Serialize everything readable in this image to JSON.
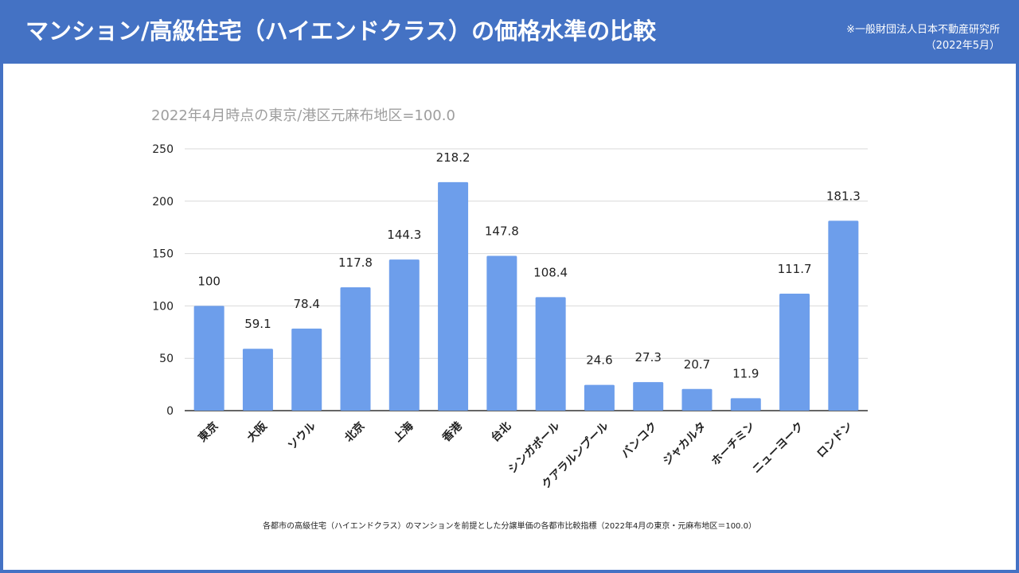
{
  "header": {
    "title": "マンション/高級住宅（ハイエンドクラス）の価格水準の比較",
    "source_line1": "※一般財団法人日本不動産研究所",
    "source_line2": "（2022年5月）"
  },
  "footnote": "各都市の高級住宅（ハイエンドクラス）のマンションを前提とした分譲単価の各都市比較指標（2022年4月の東京・元麻布地区＝100.0）",
  "colors": {
    "bar": "#6d9eeb",
    "header": "#4472c4",
    "grid": "#d9d9d9"
  },
  "chart_data": {
    "type": "bar",
    "title": "2022年4月時点の東京/港区元麻布地区=100.0",
    "xlabel": "",
    "ylabel": "",
    "ylim": [
      0,
      250
    ],
    "yticks": [
      0,
      50,
      100,
      150,
      200,
      250
    ],
    "grid": true,
    "categories": [
      "東京",
      "大阪",
      "ソウル",
      "北京",
      "上海",
      "香港",
      "台北",
      "シンガポール",
      "クアラルンプール",
      "バンコク",
      "ジャカルタ",
      "ホーチミン",
      "ニューヨーク",
      "ロンドン"
    ],
    "values": [
      100,
      59.1,
      78.4,
      117.8,
      144.3,
      218.2,
      147.8,
      108.4,
      24.6,
      27.3,
      20.7,
      11.9,
      111.7,
      181.3
    ],
    "value_labels": [
      "100",
      "59.1",
      "78.4",
      "117.8",
      "144.3",
      "218.2",
      "147.8",
      "108.4",
      "24.6",
      "27.3",
      "20.7",
      "11.9",
      "111.7",
      "181.3"
    ]
  }
}
